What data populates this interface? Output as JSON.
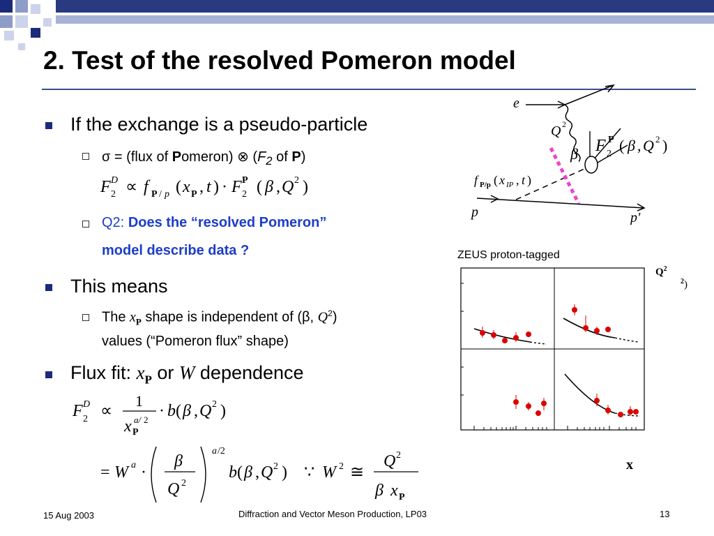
{
  "slide": {
    "title": "2. Test of the resolved Pomeron model",
    "bullets": [
      {
        "text": "If the exchange is a pseudo-particle",
        "subs": [
          {
            "a": "σ = (flux of ",
            "b": "P",
            "c": "omeron) ⊗ (",
            "d": "F",
            "e": "2",
            "f": " of ",
            "g": "P",
            "h": ")"
          },
          {
            "label": "Q2:",
            "strong1": "Does the “resolved Pomeron”",
            "strong2": "model describe data ?"
          }
        ]
      },
      {
        "text": "This means",
        "subs": [
          {
            "line1_a": "The ",
            "line1_b": " shape is independent of (β, ",
            "line1_c": ")",
            "line2": "values (“Pomeron flux” shape)"
          }
        ]
      },
      {
        "text_a": "Flux fit: ",
        "text_b": " or ",
        "text_c": " dependence"
      }
    ]
  },
  "diagram": {
    "labels": {
      "e": "e",
      "Q2": "Q",
      "beta": "β",
      "F2": "F",
      "flux": "f",
      "p": "p",
      "pprime": "p'"
    }
  },
  "plot": {
    "caption": "ZEUS proton-tagged",
    "q2_label": "Q",
    "q2_sup": "2",
    "q2_unit_sup": "2",
    "q2_unit_paren": ")",
    "x_label": "x"
  },
  "footer": {
    "date": "15 Aug 2003",
    "center": "Diffraction and Vector Meson Production, LP03",
    "page": "13"
  },
  "colors": {
    "title_rule": "#3d4f8c",
    "logo_dark": "#1b2a7a",
    "logo_light": "#8e9cc8",
    "highlight_blue": "#1d3dc9",
    "pomeron_line": "#ee44cc",
    "data_red": "#dd0000"
  }
}
